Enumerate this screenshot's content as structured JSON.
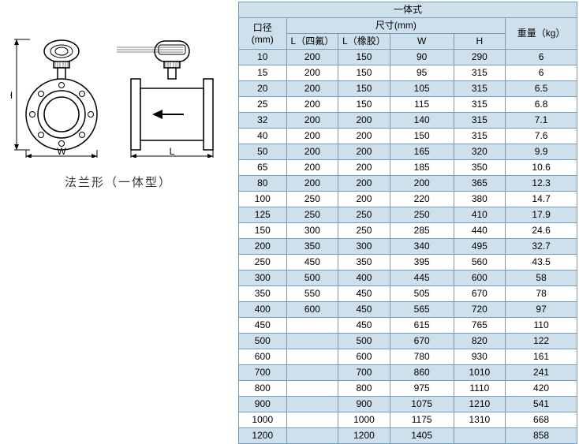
{
  "diagram": {
    "caption": "法兰形（一体型）",
    "labels": {
      "H": "H",
      "W": "W",
      "L": "L"
    },
    "stroke": "#000000",
    "fill": "#ffffff"
  },
  "table": {
    "border_color": "#7a9ab5",
    "header_bg": "#cfe0ed",
    "alt_row_bg": "#cfe0ed",
    "row_bg": "#ffffff",
    "font_size": 12,
    "title": "一体式",
    "headers": {
      "diameter": "口径(mm)",
      "dimensions": "尺寸(mm)",
      "l_ptfe": "L（四氟）",
      "l_rubber": "L（橡胶）",
      "w": "W",
      "h": "H",
      "weight": "重量（kg）"
    },
    "rows": [
      {
        "dia": "10",
        "l1": "200",
        "l2": "150",
        "w": "90",
        "h": "290",
        "wt": "6"
      },
      {
        "dia": "15",
        "l1": "200",
        "l2": "150",
        "w": "95",
        "h": "315",
        "wt": "6"
      },
      {
        "dia": "20",
        "l1": "200",
        "l2": "150",
        "w": "105",
        "h": "315",
        "wt": "6.5"
      },
      {
        "dia": "25",
        "l1": "200",
        "l2": "150",
        "w": "115",
        "h": "315",
        "wt": "6.8"
      },
      {
        "dia": "32",
        "l1": "200",
        "l2": "200",
        "w": "140",
        "h": "315",
        "wt": "7.1"
      },
      {
        "dia": "40",
        "l1": "200",
        "l2": "200",
        "w": "150",
        "h": "315",
        "wt": "7.6"
      },
      {
        "dia": "50",
        "l1": "200",
        "l2": "200",
        "w": "165",
        "h": "320",
        "wt": "9.9"
      },
      {
        "dia": "65",
        "l1": "200",
        "l2": "200",
        "w": "185",
        "h": "350",
        "wt": "10.6"
      },
      {
        "dia": "80",
        "l1": "200",
        "l2": "200",
        "w": "200",
        "h": "365",
        "wt": "12.3"
      },
      {
        "dia": "100",
        "l1": "250",
        "l2": "200",
        "w": "220",
        "h": "380",
        "wt": "14.7"
      },
      {
        "dia": "125",
        "l1": "250",
        "l2": "250",
        "w": "250",
        "h": "410",
        "wt": "17.9"
      },
      {
        "dia": "150",
        "l1": "300",
        "l2": "250",
        "w": "285",
        "h": "440",
        "wt": "24.6"
      },
      {
        "dia": "200",
        "l1": "350",
        "l2": "300",
        "w": "340",
        "h": "495",
        "wt": "32.7"
      },
      {
        "dia": "250",
        "l1": "450",
        "l2": "350",
        "w": "395",
        "h": "560",
        "wt": "43.5"
      },
      {
        "dia": "300",
        "l1": "500",
        "l2": "400",
        "w": "445",
        "h": "600",
        "wt": "58"
      },
      {
        "dia": "350",
        "l1": "550",
        "l2": "450",
        "w": "505",
        "h": "670",
        "wt": "78"
      },
      {
        "dia": "400",
        "l1": "600",
        "l2": "450",
        "w": "565",
        "h": "720",
        "wt": "97"
      },
      {
        "dia": "450",
        "l1": "",
        "l2": "450",
        "w": "615",
        "h": "765",
        "wt": "110"
      },
      {
        "dia": "500",
        "l1": "",
        "l2": "500",
        "w": "670",
        "h": "820",
        "wt": "122"
      },
      {
        "dia": "600",
        "l1": "",
        "l2": "600",
        "w": "780",
        "h": "930",
        "wt": "161"
      },
      {
        "dia": "700",
        "l1": "",
        "l2": "700",
        "w": "860",
        "h": "1010",
        "wt": "241"
      },
      {
        "dia": "800",
        "l1": "",
        "l2": "800",
        "w": "975",
        "h": "1110",
        "wt": "420"
      },
      {
        "dia": "900",
        "l1": "",
        "l2": "900",
        "w": "1075",
        "h": "1210",
        "wt": "541"
      },
      {
        "dia": "1000",
        "l1": "",
        "l2": "1000",
        "w": "1175",
        "h": "1310",
        "wt": "668"
      },
      {
        "dia": "1200",
        "l1": "",
        "l2": "1200",
        "w": "1405",
        "h": "",
        "wt": "858"
      }
    ]
  }
}
